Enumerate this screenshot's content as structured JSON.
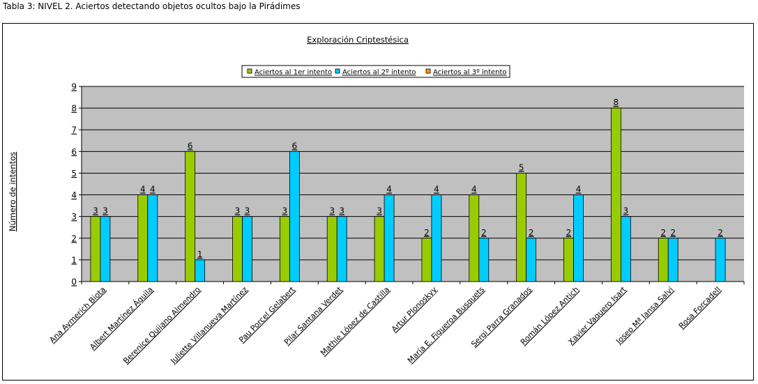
{
  "caption": "Tabla 3: NIVEL 2. Aciertos detectando objetos ocultos bajo la Pirádimes",
  "colors": {
    "series1": "#99CC00",
    "series2": "#00CCFF",
    "series3": "#FF9900",
    "plot_background": "#C0C0C0",
    "grid": "#000000"
  },
  "chart_data": {
    "type": "bar",
    "title": "Exploración Criptestésica",
    "xlabel": "",
    "ylabel": "Número de intentos",
    "ylim": [
      0,
      9
    ],
    "yticks": [
      0,
      1,
      2,
      3,
      4,
      5,
      6,
      7,
      8,
      9
    ],
    "grid": true,
    "legend_position": "top-center",
    "categories": [
      "Ana Aymerich Biota",
      "Albert Martínez Águila",
      "Berenice Quijano Almendro",
      "Juliette Villanueva Martínez",
      "Pau Porcel Gelabert",
      "Pilar Santana Verdet",
      "Mathie López de Castilla",
      "Artur Plonoskyy",
      "María E. Figueroa Busquets",
      "Sergi Parra Granados",
      "Román López Antich",
      "Xavier Vaquero Isart",
      "Josep Mª Jansa Salvi",
      "Rosa Forcadell"
    ],
    "series": [
      {
        "name": "Aciertos al 1er intento",
        "values": [
          3,
          4,
          6,
          3,
          3,
          3,
          3,
          2,
          4,
          5,
          2,
          8,
          2,
          null
        ]
      },
      {
        "name": "Aciertos al 2º intento",
        "values": [
          3,
          4,
          1,
          3,
          6,
          3,
          4,
          4,
          2,
          2,
          4,
          3,
          2,
          2
        ]
      },
      {
        "name": "Aciertos al 3º intento",
        "values": [
          null,
          null,
          null,
          null,
          null,
          null,
          null,
          null,
          null,
          null,
          null,
          null,
          null,
          null
        ]
      }
    ]
  }
}
